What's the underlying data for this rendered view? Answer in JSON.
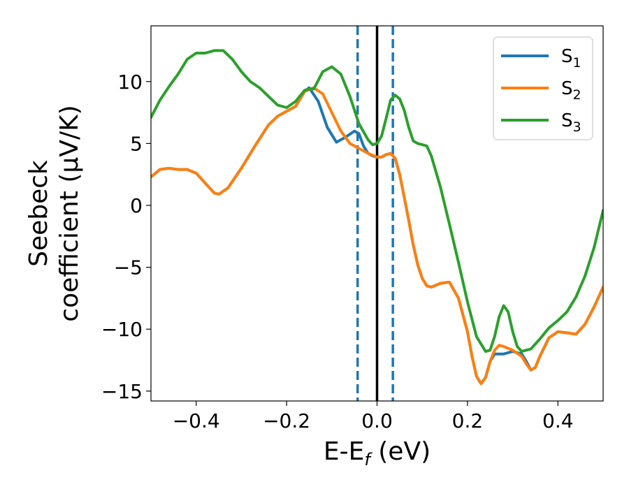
{
  "chart_data": {
    "type": "line",
    "xlabel": "E-E_f (eV)",
    "xlabel_parts": {
      "main": "E-E",
      "sub": "f",
      "unit": " (eV)"
    },
    "ylabel_line1": "Seebeck",
    "ylabel_line2": "coefficient  (μV/K)",
    "xlim": [
      -0.5,
      0.5
    ],
    "ylim": [
      -15.8,
      14.5
    ],
    "xticks": [
      -0.4,
      -0.2,
      0.0,
      0.2,
      0.4
    ],
    "xtick_labels": [
      "−0.4",
      "−0.2",
      "0.0",
      "0.2",
      "0.4"
    ],
    "yticks": [
      -15,
      -10,
      -5,
      0,
      5,
      10
    ],
    "ytick_labels": [
      "−15",
      "−10",
      "−5",
      "0",
      "5",
      "10"
    ],
    "grid": false,
    "legend_position": "top-right",
    "vlines": [
      {
        "x": -0.043,
        "style": "dashed",
        "color": "#1f77b4"
      },
      {
        "x": 0.0,
        "style": "solid",
        "color": "#000000"
      },
      {
        "x": 0.035,
        "style": "dashed",
        "color": "#1f77b4"
      }
    ],
    "series": [
      {
        "name": "S",
        "sub": "1",
        "color": "#1f77b4",
        "points": [
          [
            -0.5,
            2.3
          ],
          [
            -0.48,
            2.9
          ],
          [
            -0.46,
            3.0
          ],
          [
            -0.44,
            2.9
          ],
          [
            -0.42,
            2.9
          ],
          [
            -0.4,
            2.6
          ],
          [
            -0.38,
            1.8
          ],
          [
            -0.36,
            1.0
          ],
          [
            -0.35,
            0.9
          ],
          [
            -0.33,
            1.4
          ],
          [
            -0.3,
            3.0
          ],
          [
            -0.27,
            4.8
          ],
          [
            -0.24,
            6.5
          ],
          [
            -0.22,
            7.2
          ],
          [
            -0.2,
            7.6
          ],
          [
            -0.18,
            8.0
          ],
          [
            -0.16,
            9.2
          ],
          [
            -0.15,
            9.5
          ],
          [
            -0.13,
            8.4
          ],
          [
            -0.11,
            6.3
          ],
          [
            -0.09,
            5.1
          ],
          [
            -0.07,
            5.5
          ],
          [
            -0.05,
            6.0
          ],
          [
            -0.04,
            5.8
          ],
          [
            -0.03,
            4.8
          ],
          [
            -0.02,
            4.2
          ],
          [
            -0.01,
            4.0
          ],
          [
            0.0,
            3.9
          ],
          [
            0.01,
            3.9
          ],
          [
            0.02,
            4.1
          ],
          [
            0.03,
            4.2
          ],
          [
            0.04,
            3.8
          ],
          [
            0.05,
            2.5
          ],
          [
            0.06,
            0.7
          ],
          [
            0.07,
            -1.2
          ],
          [
            0.08,
            -3.2
          ],
          [
            0.09,
            -4.8
          ],
          [
            0.1,
            -5.9
          ],
          [
            0.11,
            -6.5
          ],
          [
            0.12,
            -6.6
          ],
          [
            0.14,
            -6.3
          ],
          [
            0.16,
            -6.2
          ],
          [
            0.18,
            -7.5
          ],
          [
            0.2,
            -10.2
          ],
          [
            0.21,
            -12.2
          ],
          [
            0.22,
            -13.8
          ],
          [
            0.23,
            -14.4
          ],
          [
            0.24,
            -13.9
          ],
          [
            0.25,
            -12.6
          ],
          [
            0.26,
            -12.0
          ],
          [
            0.28,
            -12.0
          ],
          [
            0.3,
            -11.8
          ],
          [
            0.32,
            -12.0
          ],
          [
            0.33,
            -12.6
          ],
          [
            0.34,
            -13.3
          ],
          [
            0.35,
            -13.1
          ],
          [
            0.36,
            -12.2
          ],
          [
            0.38,
            -10.7
          ],
          [
            0.4,
            -10.2
          ],
          [
            0.42,
            -10.3
          ],
          [
            0.44,
            -10.4
          ],
          [
            0.46,
            -9.6
          ],
          [
            0.48,
            -8.2
          ],
          [
            0.5,
            -6.6
          ]
        ]
      },
      {
        "name": "S",
        "sub": "2",
        "color": "#ff7f0e",
        "points": [
          [
            -0.5,
            2.3
          ],
          [
            -0.48,
            2.9
          ],
          [
            -0.46,
            3.0
          ],
          [
            -0.44,
            2.9
          ],
          [
            -0.42,
            2.9
          ],
          [
            -0.4,
            2.6
          ],
          [
            -0.38,
            1.8
          ],
          [
            -0.36,
            1.0
          ],
          [
            -0.35,
            0.9
          ],
          [
            -0.33,
            1.4
          ],
          [
            -0.3,
            3.0
          ],
          [
            -0.27,
            4.8
          ],
          [
            -0.24,
            6.5
          ],
          [
            -0.22,
            7.2
          ],
          [
            -0.2,
            7.6
          ],
          [
            -0.18,
            8.0
          ],
          [
            -0.16,
            9.2
          ],
          [
            -0.14,
            9.5
          ],
          [
            -0.12,
            9.0
          ],
          [
            -0.1,
            7.5
          ],
          [
            -0.08,
            6.0
          ],
          [
            -0.06,
            5.0
          ],
          [
            -0.04,
            4.6
          ],
          [
            -0.02,
            4.2
          ],
          [
            0.0,
            3.9
          ],
          [
            0.01,
            3.9
          ],
          [
            0.02,
            4.1
          ],
          [
            0.03,
            4.2
          ],
          [
            0.04,
            3.8
          ],
          [
            0.05,
            2.5
          ],
          [
            0.06,
            0.7
          ],
          [
            0.07,
            -1.2
          ],
          [
            0.08,
            -3.2
          ],
          [
            0.09,
            -4.8
          ],
          [
            0.1,
            -5.9
          ],
          [
            0.11,
            -6.5
          ],
          [
            0.12,
            -6.6
          ],
          [
            0.14,
            -6.3
          ],
          [
            0.16,
            -6.2
          ],
          [
            0.18,
            -7.5
          ],
          [
            0.2,
            -10.2
          ],
          [
            0.21,
            -12.2
          ],
          [
            0.22,
            -13.8
          ],
          [
            0.23,
            -14.4
          ],
          [
            0.24,
            -13.9
          ],
          [
            0.25,
            -12.6
          ],
          [
            0.26,
            -11.7
          ],
          [
            0.27,
            -11.3
          ],
          [
            0.28,
            -11.4
          ],
          [
            0.3,
            -11.7
          ],
          [
            0.32,
            -12.2
          ],
          [
            0.33,
            -12.8
          ],
          [
            0.34,
            -13.3
          ],
          [
            0.35,
            -13.1
          ],
          [
            0.36,
            -12.2
          ],
          [
            0.38,
            -10.7
          ],
          [
            0.4,
            -10.2
          ],
          [
            0.42,
            -10.3
          ],
          [
            0.44,
            -10.4
          ],
          [
            0.46,
            -9.6
          ],
          [
            0.48,
            -8.2
          ],
          [
            0.5,
            -6.6
          ]
        ]
      },
      {
        "name": "S",
        "sub": "3",
        "color": "#2ca02c",
        "points": [
          [
            -0.5,
            7.1
          ],
          [
            -0.48,
            8.5
          ],
          [
            -0.46,
            9.6
          ],
          [
            -0.44,
            10.6
          ],
          [
            -0.42,
            11.8
          ],
          [
            -0.4,
            12.3
          ],
          [
            -0.38,
            12.3
          ],
          [
            -0.36,
            12.5
          ],
          [
            -0.34,
            12.5
          ],
          [
            -0.32,
            11.8
          ],
          [
            -0.3,
            10.8
          ],
          [
            -0.28,
            10.0
          ],
          [
            -0.26,
            9.5
          ],
          [
            -0.24,
            8.8
          ],
          [
            -0.22,
            8.1
          ],
          [
            -0.2,
            7.9
          ],
          [
            -0.18,
            8.4
          ],
          [
            -0.16,
            9.3
          ],
          [
            -0.15,
            9.4
          ],
          [
            -0.14,
            9.4
          ],
          [
            -0.12,
            10.8
          ],
          [
            -0.1,
            11.2
          ],
          [
            -0.08,
            10.6
          ],
          [
            -0.06,
            8.8
          ],
          [
            -0.04,
            6.6
          ],
          [
            -0.02,
            5.3
          ],
          [
            -0.01,
            4.9
          ],
          [
            0.0,
            5.0
          ],
          [
            0.01,
            5.6
          ],
          [
            0.02,
            7.0
          ],
          [
            0.03,
            8.5
          ],
          [
            0.04,
            8.9
          ],
          [
            0.05,
            8.6
          ],
          [
            0.06,
            7.7
          ],
          [
            0.07,
            6.3
          ],
          [
            0.08,
            5.2
          ],
          [
            0.09,
            5.0
          ],
          [
            0.1,
            4.9
          ],
          [
            0.11,
            4.8
          ],
          [
            0.12,
            4.0
          ],
          [
            0.14,
            1.5
          ],
          [
            0.16,
            -1.5
          ],
          [
            0.18,
            -4.6
          ],
          [
            0.2,
            -7.8
          ],
          [
            0.22,
            -10.6
          ],
          [
            0.24,
            -11.8
          ],
          [
            0.25,
            -11.7
          ],
          [
            0.26,
            -10.6
          ],
          [
            0.27,
            -9.0
          ],
          [
            0.28,
            -8.1
          ],
          [
            0.29,
            -8.6
          ],
          [
            0.3,
            -10.2
          ],
          [
            0.31,
            -11.4
          ],
          [
            0.32,
            -11.8
          ],
          [
            0.34,
            -11.6
          ],
          [
            0.36,
            -10.8
          ],
          [
            0.38,
            -9.9
          ],
          [
            0.4,
            -9.3
          ],
          [
            0.42,
            -8.6
          ],
          [
            0.44,
            -7.4
          ],
          [
            0.46,
            -5.7
          ],
          [
            0.48,
            -3.4
          ],
          [
            0.5,
            -0.4
          ]
        ]
      }
    ]
  }
}
